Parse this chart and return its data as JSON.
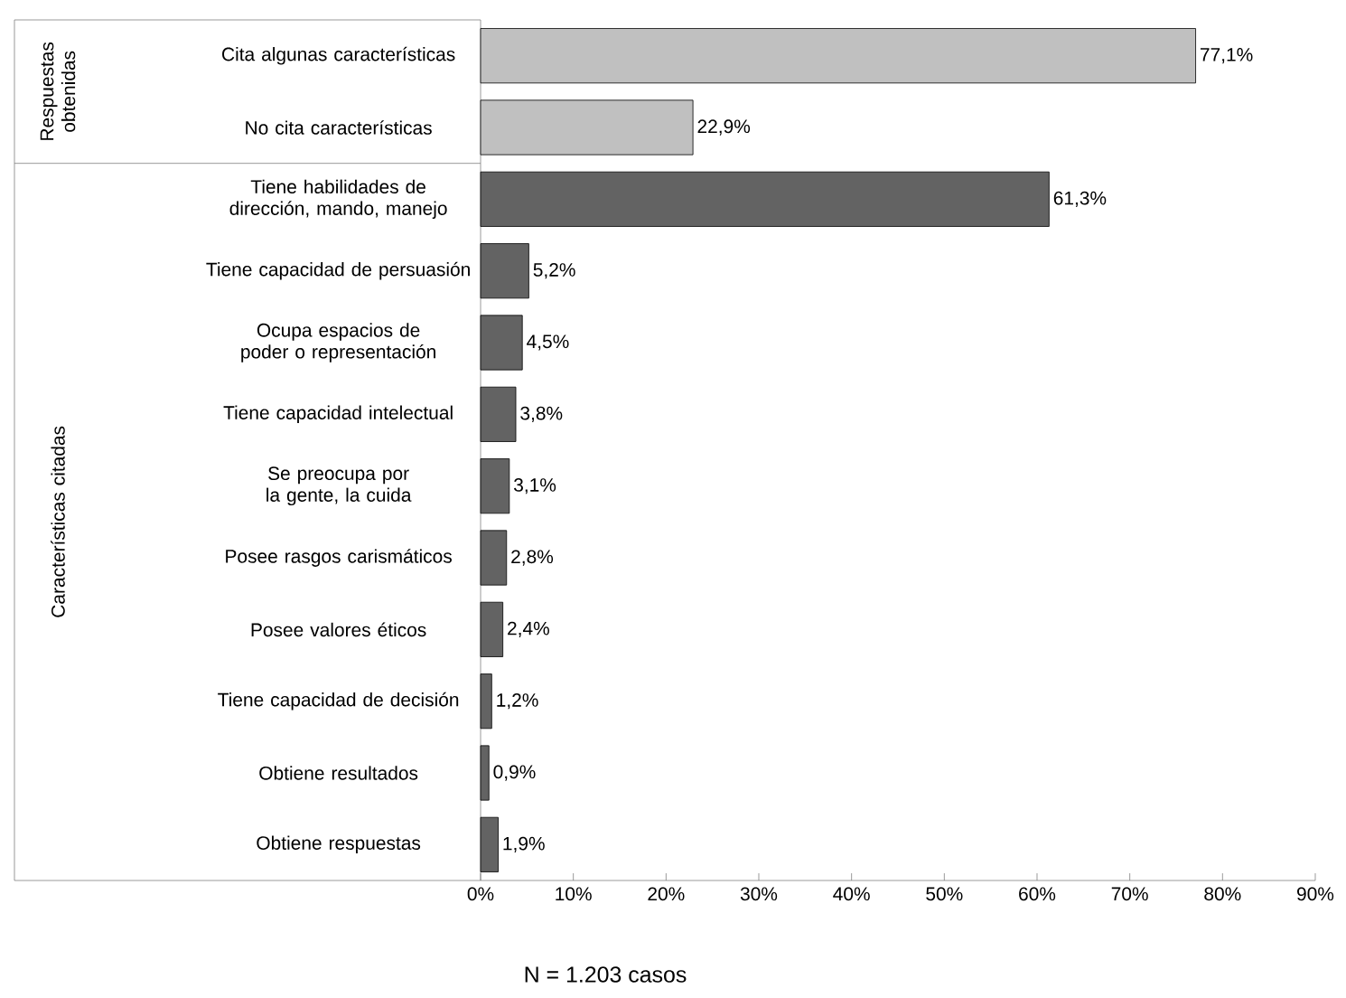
{
  "chart_data": {
    "type": "bar",
    "orientation": "horizontal",
    "categories": [
      "Cita algunas características",
      "No cita características",
      "Tiene habilidades de dirección, mando, manejo",
      "Tiene capacidad de persuasión",
      "Ocupa espacios de poder o representación",
      "Tiene capacidad intelectual",
      "Se preocupa por la gente, la cuida",
      "Posee rasgos carismáticos",
      "Posee valores éticos",
      "Tiene capacidad de decisión",
      "Obtiene resultados",
      "Obtiene respuestas"
    ],
    "values": [
      77.1,
      22.9,
      61.3,
      5.2,
      4.5,
      3.8,
      3.1,
      2.8,
      2.4,
      1.2,
      0.9,
      1.9
    ],
    "value_labels": [
      "77,1%",
      "22,9%",
      "61,3%",
      "5,2%",
      "4,5%",
      "3,8%",
      "3,1%",
      "2,8%",
      "2,4%",
      "1,2%",
      "0,9%",
      "1,9%"
    ],
    "colors": [
      "#c0c0c0",
      "#c0c0c0",
      "#636363",
      "#636363",
      "#636363",
      "#636363",
      "#636363",
      "#636363",
      "#636363",
      "#636363",
      "#636363",
      "#636363"
    ],
    "xlim": [
      0,
      90
    ],
    "xticks": [
      {
        "value": 0,
        "label": "0%"
      },
      {
        "value": 10,
        "label": "10%"
      },
      {
        "value": 20,
        "label": "20%"
      },
      {
        "value": 30,
        "label": "30%"
      },
      {
        "value": 40,
        "label": "40%"
      },
      {
        "value": 50,
        "label": "50%"
      },
      {
        "value": 60,
        "label": "60%"
      },
      {
        "value": 70,
        "label": "70%"
      },
      {
        "value": 80,
        "label": "80%"
      },
      {
        "value": 90,
        "label": "90%"
      }
    ],
    "annotations": [
      "Respuestas obtenidas",
      "Características citadas",
      "N = 1.203 casos"
    ],
    "grid": false
  }
}
